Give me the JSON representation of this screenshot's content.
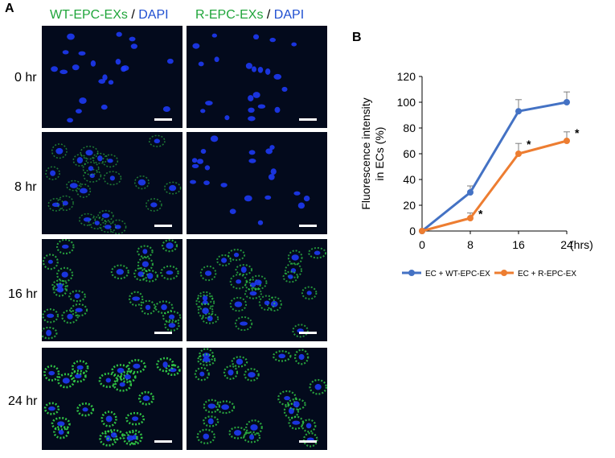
{
  "panel_a": {
    "letter": "A",
    "columns": [
      {
        "label_green": "WT-EPC-EXs",
        "sep": " / ",
        "label_blue": "DAPI"
      },
      {
        "label_green": "R-EPC-EXs",
        "sep": " / ",
        "label_blue": "DAPI"
      }
    ],
    "rows": [
      "0 hr",
      "8 hr",
      "16 hr",
      "24 hr"
    ],
    "green_levels": [
      [
        0.02,
        0.02
      ],
      [
        0.35,
        0.05
      ],
      [
        0.7,
        0.6
      ],
      [
        1.0,
        0.75
      ]
    ],
    "colors": {
      "background": "#030a1c",
      "nucleus": "#1e3cff",
      "exosome": "#34d44a",
      "scale_bar": "#ffffff"
    }
  },
  "panel_b": {
    "letter": "B",
    "chart_data": {
      "type": "line",
      "x": [
        0,
        8,
        16,
        24
      ],
      "xlabel": "(hrs)",
      "ylabel": "Fluorescence intensity in ECs (%)",
      "ylabel_lines": [
        "Fluorescence intensity",
        "in ECs (%)"
      ],
      "ylim": [
        0,
        120
      ],
      "yticks": [
        0,
        20,
        40,
        60,
        80,
        100,
        120
      ],
      "xticks": [
        "0",
        "8",
        "16",
        "24"
      ],
      "grid": false,
      "legend_position": "bottom",
      "series": [
        {
          "name": "EC + WT-EPC-EX",
          "values": [
            0,
            30,
            93,
            100
          ],
          "error": [
            0,
            5,
            9,
            8
          ],
          "color": "#4472c4",
          "significant": [
            false,
            false,
            false,
            false
          ]
        },
        {
          "name": "EC + R-EPC-EX",
          "values": [
            0,
            10,
            60,
            70
          ],
          "error": [
            0,
            4,
            8,
            7
          ],
          "color": "#ed7d31",
          "significant": [
            false,
            true,
            true,
            true
          ]
        }
      ],
      "annotation_marker": "*"
    }
  }
}
